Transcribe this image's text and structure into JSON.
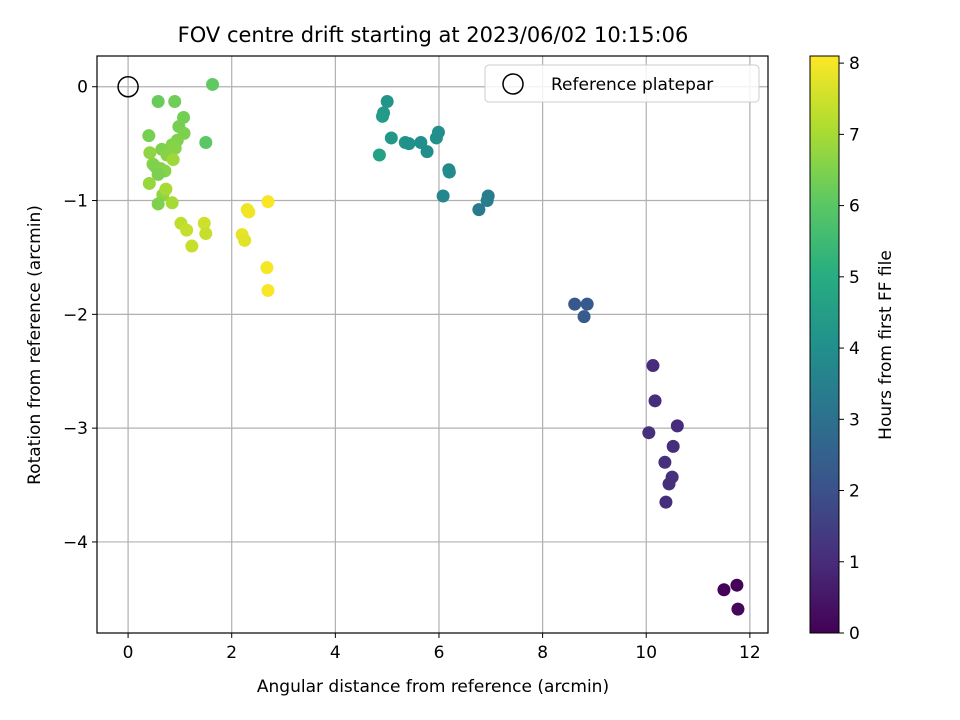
{
  "chart_data": {
    "type": "scatter",
    "title": "FOV centre drift starting at 2023/06/02 10:15:06",
    "xlabel": "Angular distance from reference (arcmin)",
    "ylabel": "Rotation from reference (arcmin)",
    "xlim": [
      -0.6,
      12.35
    ],
    "ylim": [
      -4.8,
      0.27
    ],
    "xticks": [
      0,
      2,
      4,
      6,
      8,
      10,
      12
    ],
    "xtick_labels": [
      "0",
      "2",
      "4",
      "6",
      "8",
      "10",
      "12"
    ],
    "yticks": [
      0,
      -1,
      -2,
      -3,
      -4
    ],
    "ytick_labels": [
      "0",
      "−1",
      "−2",
      "−3",
      "−4"
    ],
    "grid": true,
    "legend": {
      "placement": "top-right",
      "entries": [
        "Reference platepar"
      ]
    },
    "colorbar": {
      "label": "Hours from first FF file",
      "range": [
        0,
        8.1
      ],
      "ticks": [
        0,
        1,
        2,
        3,
        4,
        5,
        6,
        7,
        8
      ],
      "tick_labels": [
        "0",
        "1",
        "2",
        "3",
        "4",
        "5",
        "6",
        "7",
        "8"
      ],
      "colormap": "viridis"
    },
    "reference_point": {
      "name": "Reference platepar",
      "x": 0,
      "y": 0
    },
    "series": [
      {
        "name": "",
        "points": [
          {
            "x": 11.5,
            "y": -4.42,
            "c": 0.05
          },
          {
            "x": 11.75,
            "y": -4.38,
            "c": 0.1
          },
          {
            "x": 11.77,
            "y": -4.59,
            "c": 0.15
          },
          {
            "x": 10.13,
            "y": -2.45,
            "c": 1.0
          },
          {
            "x": 10.17,
            "y": -2.76,
            "c": 1.05
          },
          {
            "x": 10.05,
            "y": -3.04,
            "c": 1.1
          },
          {
            "x": 10.6,
            "y": -2.98,
            "c": 1.0
          },
          {
            "x": 10.52,
            "y": -3.16,
            "c": 1.05
          },
          {
            "x": 10.36,
            "y": -3.3,
            "c": 1.1
          },
          {
            "x": 10.5,
            "y": -3.43,
            "c": 1.15
          },
          {
            "x": 10.44,
            "y": -3.49,
            "c": 1.1
          },
          {
            "x": 10.38,
            "y": -3.65,
            "c": 1.05
          },
          {
            "x": 8.62,
            "y": -1.91,
            "c": 2.2
          },
          {
            "x": 8.86,
            "y": -1.91,
            "c": 2.25
          },
          {
            "x": 8.8,
            "y": -2.02,
            "c": 2.3
          },
          {
            "x": 6.77,
            "y": -1.08,
            "c": 3.3
          },
          {
            "x": 6.93,
            "y": -1.0,
            "c": 3.35
          },
          {
            "x": 6.95,
            "y": -0.96,
            "c": 3.4
          },
          {
            "x": 6.08,
            "y": -0.96,
            "c": 3.7
          },
          {
            "x": 6.19,
            "y": -0.73,
            "c": 3.8
          },
          {
            "x": 6.2,
            "y": -0.75,
            "c": 3.85
          },
          {
            "x": 5.0,
            "y": -0.13,
            "c": 4.2
          },
          {
            "x": 4.93,
            "y": -0.23,
            "c": 4.3
          },
          {
            "x": 4.91,
            "y": -0.26,
            "c": 4.4
          },
          {
            "x": 5.08,
            "y": -0.45,
            "c": 4.3
          },
          {
            "x": 5.35,
            "y": -0.49,
            "c": 4.2
          },
          {
            "x": 5.42,
            "y": -0.5,
            "c": 4.1
          },
          {
            "x": 5.65,
            "y": -0.49,
            "c": 4.0
          },
          {
            "x": 5.77,
            "y": -0.57,
            "c": 3.95
          },
          {
            "x": 5.95,
            "y": -0.45,
            "c": 4.05
          },
          {
            "x": 5.99,
            "y": -0.4,
            "c": 4.0
          },
          {
            "x": 4.85,
            "y": -0.6,
            "c": 4.6
          },
          {
            "x": 1.63,
            "y": 0.02,
            "c": 6.1
          },
          {
            "x": 0.58,
            "y": -0.13,
            "c": 6.2
          },
          {
            "x": 0.9,
            "y": -0.13,
            "c": 6.3
          },
          {
            "x": 0.4,
            "y": -0.43,
            "c": 6.4
          },
          {
            "x": 1.07,
            "y": -0.27,
            "c": 6.35
          },
          {
            "x": 0.98,
            "y": -0.35,
            "c": 6.4
          },
          {
            "x": 1.08,
            "y": -0.41,
            "c": 6.45
          },
          {
            "x": 0.95,
            "y": -0.47,
            "c": 6.5
          },
          {
            "x": 0.85,
            "y": -0.51,
            "c": 6.55
          },
          {
            "x": 0.91,
            "y": -0.54,
            "c": 6.6
          },
          {
            "x": 0.65,
            "y": -0.55,
            "c": 6.5
          },
          {
            "x": 1.5,
            "y": -0.49,
            "c": 6.0
          },
          {
            "x": 0.42,
            "y": -0.58,
            "c": 6.7
          },
          {
            "x": 0.75,
            "y": -0.6,
            "c": 6.6
          },
          {
            "x": 0.87,
            "y": -0.64,
            "c": 6.9
          },
          {
            "x": 0.48,
            "y": -0.68,
            "c": 6.6
          },
          {
            "x": 0.52,
            "y": -0.7,
            "c": 6.5
          },
          {
            "x": 0.63,
            "y": -0.72,
            "c": 6.55
          },
          {
            "x": 0.71,
            "y": -0.74,
            "c": 6.6
          },
          {
            "x": 0.58,
            "y": -0.77,
            "c": 6.45
          },
          {
            "x": 0.41,
            "y": -0.85,
            "c": 6.8
          },
          {
            "x": 0.67,
            "y": -0.95,
            "c": 6.7
          },
          {
            "x": 0.73,
            "y": -0.9,
            "c": 7.0
          },
          {
            "x": 0.58,
            "y": -1.03,
            "c": 6.5
          },
          {
            "x": 0.85,
            "y": -1.02,
            "c": 7.0
          },
          {
            "x": 1.02,
            "y": -1.2,
            "c": 7.3
          },
          {
            "x": 1.13,
            "y": -1.26,
            "c": 7.4
          },
          {
            "x": 1.23,
            "y": -1.4,
            "c": 7.4
          },
          {
            "x": 1.47,
            "y": -1.2,
            "c": 7.5
          },
          {
            "x": 1.5,
            "y": -1.29,
            "c": 7.4
          },
          {
            "x": 2.2,
            "y": -1.3,
            "c": 7.8
          },
          {
            "x": 2.25,
            "y": -1.35,
            "c": 7.75
          },
          {
            "x": 2.3,
            "y": -1.08,
            "c": 7.9
          },
          {
            "x": 2.33,
            "y": -1.1,
            "c": 7.95
          },
          {
            "x": 2.7,
            "y": -1.01,
            "c": 8.05
          },
          {
            "x": 2.68,
            "y": -1.59,
            "c": 8.0
          },
          {
            "x": 2.7,
            "y": -1.79,
            "c": 8.05
          }
        ]
      }
    ]
  }
}
